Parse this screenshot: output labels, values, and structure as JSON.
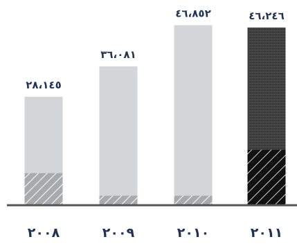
{
  "chart_data": {
    "type": "bar",
    "categories": [
      "٢٠٠٨",
      "٢٠٠٩",
      "٢٠١٠",
      "٢٠١١"
    ],
    "values": [
      28145,
      36081,
      46852,
      46246
    ],
    "value_labels": [
      "٢٨،١٤٥",
      "٣٦،٠٨١",
      "٤٦،٨٥٢",
      "٤٦،٢٤٦"
    ],
    "hatched_values": [
      8200,
      2300,
      2300,
      14300
    ],
    "highlight_index": 3,
    "ylim": [
      0,
      50000
    ],
    "grid": false,
    "title": "",
    "xlabel": "",
    "ylabel": "",
    "colors": {
      "bar": "#d4d5d7",
      "hatch_fill": "#a9aaac",
      "hatch_line": "#ffffff",
      "highlight_top": "#404040",
      "highlight_hatch_fill": "#111111",
      "baseline": "#555555",
      "label": "#1f3358"
    }
  }
}
